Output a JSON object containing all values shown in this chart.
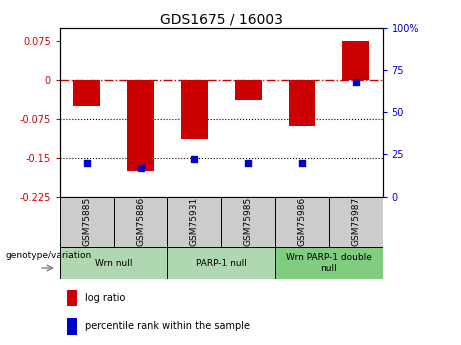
{
  "title": "GDS1675 / 16003",
  "samples": [
    "GSM75885",
    "GSM75886",
    "GSM75931",
    "GSM75985",
    "GSM75986",
    "GSM75987"
  ],
  "log_ratios": [
    -0.05,
    -0.175,
    -0.115,
    -0.04,
    -0.09,
    0.075
  ],
  "percentile_ranks": [
    20,
    17,
    22,
    20,
    20,
    68
  ],
  "ylim_left": [
    -0.225,
    0.1
  ],
  "ylim_right": [
    0,
    100
  ],
  "yticks_left": [
    0.075,
    0,
    -0.075,
    -0.15,
    -0.225
  ],
  "yticks_right": [
    100,
    75,
    50,
    25,
    0
  ],
  "hlines": [
    -0.075,
    -0.15
  ],
  "bar_color": "#cc0000",
  "square_color": "#0000cc",
  "bar_width": 0.5,
  "square_size": 25,
  "xlabel_area_color": "#cccccc",
  "group_defs": [
    {
      "label": "Wrn null",
      "start": 0,
      "end": 2,
      "color": "#b0d8b0"
    },
    {
      "label": "PARP-1 null",
      "start": 2,
      "end": 4,
      "color": "#b0d8b0"
    },
    {
      "label": "Wrn PARP-1 double\nnull",
      "start": 4,
      "end": 6,
      "color": "#80cc80"
    }
  ],
  "arrow_label": "genotype/variation",
  "legend_items": [
    {
      "color": "#cc0000",
      "label": "log ratio"
    },
    {
      "color": "#0000cc",
      "label": "percentile rank within the sample"
    }
  ]
}
